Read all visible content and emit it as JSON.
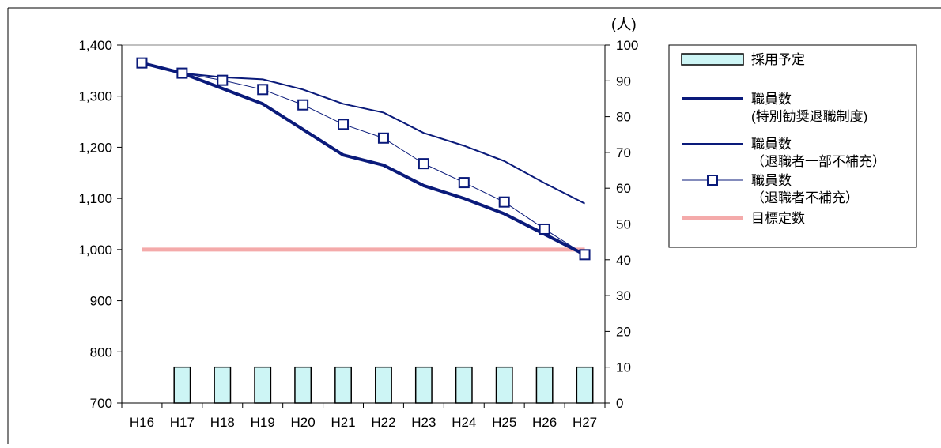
{
  "chart_data": {
    "type": "line",
    "categories": [
      "H16",
      "H17",
      "H18",
      "H19",
      "H20",
      "H21",
      "H22",
      "H23",
      "H24",
      "H25",
      "H26",
      "H27"
    ],
    "left_axis": {
      "min": 700,
      "max": 1400,
      "step": 100,
      "tick_labels": [
        "700",
        "800",
        "900",
        "1,000",
        "1,100",
        "1,200",
        "1,300",
        "1,400"
      ]
    },
    "right_axis": {
      "min": 0,
      "max": 100,
      "step": 10,
      "unit_label": "(人)",
      "tick_labels": [
        "0",
        "10",
        "20",
        "30",
        "40",
        "50",
        "60",
        "70",
        "80",
        "90",
        "100"
      ]
    },
    "series": [
      {
        "key": "hiring",
        "type": "bar",
        "axis": "right",
        "color": "#cdf5f5",
        "legend": [
          "採用予定"
        ],
        "values": [
          null,
          10,
          10,
          10,
          10,
          10,
          10,
          10,
          10,
          10,
          10,
          10
        ]
      },
      {
        "key": "special",
        "type": "line",
        "axis": "left",
        "color": "#0a1a7a",
        "legend": [
          "職員数",
          "(特別勧奨退職制度)"
        ],
        "values": [
          1365,
          1345,
          1315,
          1285,
          1235,
          1185,
          1165,
          1125,
          1100,
          1070,
          1030,
          990
        ]
      },
      {
        "key": "partial",
        "type": "line",
        "axis": "left",
        "color": "#0a1a7a",
        "legend": [
          "職員数",
          "（退職者一部不補充）"
        ],
        "values": [
          1365,
          1345,
          1337,
          1333,
          1313,
          1285,
          1268,
          1228,
          1203,
          1173,
          1130,
          1090
        ]
      },
      {
        "key": "none",
        "type": "line-marker",
        "axis": "left",
        "color": "#0a1a7a",
        "legend": [
          "職員数",
          "（退職者不補充）"
        ],
        "values": [
          1365,
          1345,
          1331,
          1313,
          1283,
          1245,
          1218,
          1168,
          1131,
          1093,
          1040,
          990
        ]
      },
      {
        "key": "target",
        "type": "line",
        "axis": "left",
        "color": "#f4aaaa",
        "legend": [
          "目標定数"
        ],
        "values": [
          1000,
          1000,
          1000,
          1000,
          1000,
          1000,
          1000,
          1000,
          1000,
          1000,
          1000,
          1000
        ]
      }
    ]
  }
}
